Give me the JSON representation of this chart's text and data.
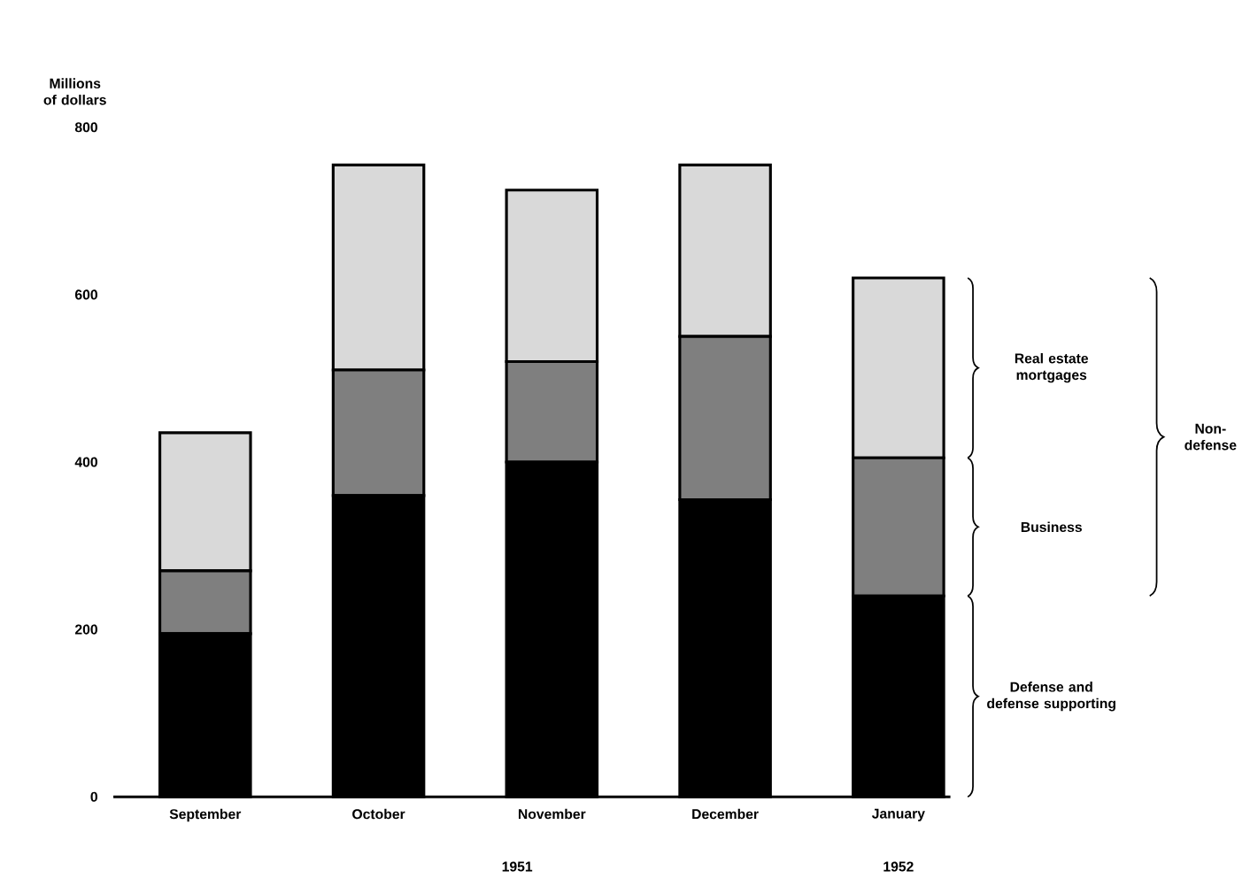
{
  "chart_data": {
    "type": "bar",
    "stacked": true,
    "ylabel": "Millions of dollars",
    "categories": [
      "September",
      "October",
      "November",
      "December",
      "January"
    ],
    "series": [
      {
        "name": "Defense and defense supporting",
        "color": "#000000",
        "values": [
          195,
          360,
          400,
          355,
          240
        ]
      },
      {
        "name": "Business",
        "color": "#7f7f7f",
        "values": [
          75,
          150,
          120,
          195,
          165
        ]
      },
      {
        "name": "Real estate mortgages",
        "color": "#d9d9d9",
        "values": [
          165,
          245,
          205,
          205,
          215
        ]
      }
    ],
    "ylim": [
      0,
      800
    ],
    "yticks": [
      0,
      200,
      400,
      600,
      800
    ],
    "legend": "right",
    "annotations": [
      "Non-defense",
      "1951",
      "1952"
    ]
  }
}
